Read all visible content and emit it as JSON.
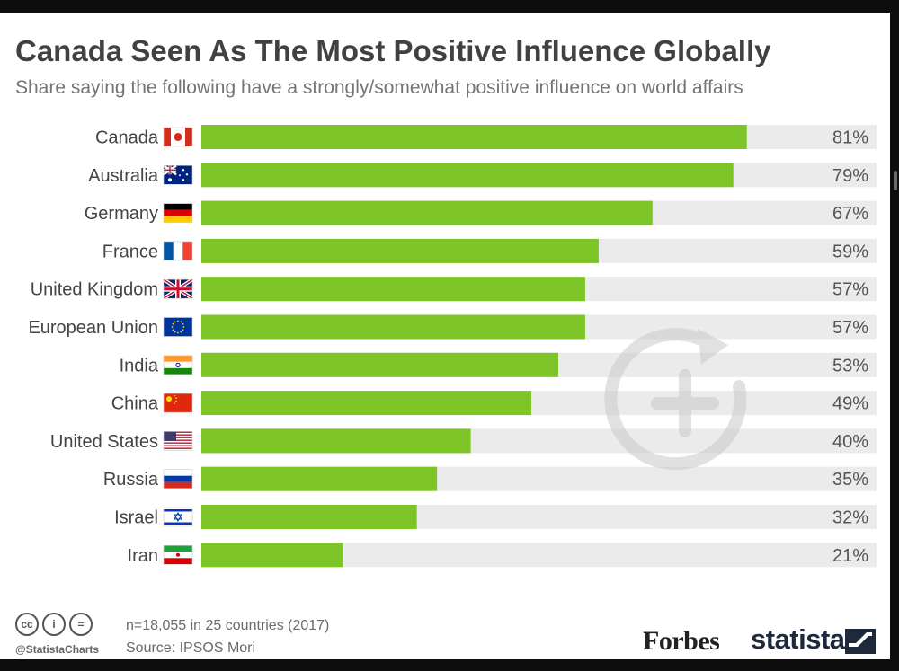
{
  "header": {
    "title": "Canada Seen As The Most Positive Influence Globally",
    "subtitle": "Share saying the following have a strongly/somewhat positive influence on world affairs"
  },
  "chart_data": {
    "type": "bar",
    "orientation": "horizontal",
    "title": "Canada Seen As The Most Positive Influence Globally",
    "subtitle": "Share saying the following have a strongly/somewhat positive influence on world affairs",
    "categories": [
      "Canada",
      "Australia",
      "Germany",
      "France",
      "United Kingdom",
      "European Union",
      "India",
      "China",
      "United States",
      "Russia",
      "Israel",
      "Iran"
    ],
    "values": [
      81,
      79,
      67,
      59,
      57,
      57,
      53,
      49,
      40,
      35,
      32,
      21
    ],
    "value_labels": [
      "81%",
      "79%",
      "67%",
      "59%",
      "57%",
      "57%",
      "53%",
      "49%",
      "40%",
      "35%",
      "32%",
      "21%"
    ],
    "xlim": [
      0,
      100
    ],
    "unit": "%",
    "grid": false,
    "legend": "none",
    "icons": [
      "canada-flag-icon",
      "australia-flag-icon",
      "germany-flag-icon",
      "france-flag-icon",
      "uk-flag-icon",
      "eu-flag-icon",
      "india-flag-icon",
      "china-flag-icon",
      "usa-flag-icon",
      "russia-flag-icon",
      "israel-flag-icon",
      "iran-flag-icon"
    ]
  },
  "footer": {
    "sample": "n=18,055 in 25 countries (2017)",
    "source": "Source: IPSOS Mori",
    "handle": "@StatistaCharts",
    "license_icons": [
      "cc-icon",
      "by-icon",
      "nd-icon"
    ],
    "license_glyphs": [
      "cc",
      "i",
      "="
    ],
    "brand_forbes": "Forbes",
    "brand_statista": "statista"
  },
  "colors": {
    "bar": "#7dc427",
    "track": "#ebebeb",
    "title": "#414141",
    "subtitle": "#747474",
    "background": "#ffffff",
    "frame": "#0d0d0d"
  },
  "overlay": {
    "icon": "replay-plus-icon"
  }
}
